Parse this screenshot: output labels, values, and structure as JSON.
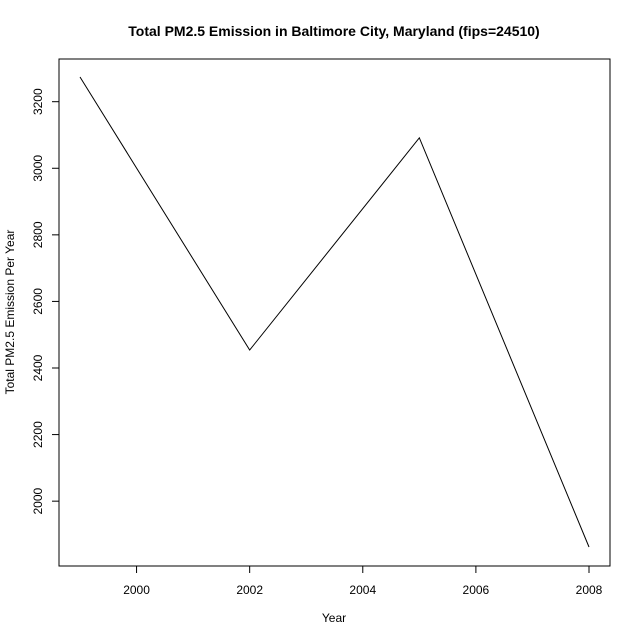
{
  "chart_data": {
    "type": "line",
    "title": "Total PM2.5 Emission in Baltimore City, Maryland (fips=24510)",
    "xlabel": "Year",
    "ylabel": "Total PM2.5 Emission Per Year",
    "x": [
      1999,
      2002,
      2005,
      2008
    ],
    "series": [
      {
        "values": [
          3274.18,
          2453.92,
          3091.35,
          1862.28
        ]
      }
    ],
    "xlim": [
      1999,
      2008
    ],
    "ylim": [
      1862.28,
      3274.18
    ],
    "xticks": [
      2000,
      2002,
      2004,
      2006,
      2008
    ],
    "yticks": [
      2000,
      2200,
      2400,
      2600,
      2800,
      3000,
      3200
    ],
    "line_color": "#000000",
    "grid": false,
    "legend": "none"
  }
}
